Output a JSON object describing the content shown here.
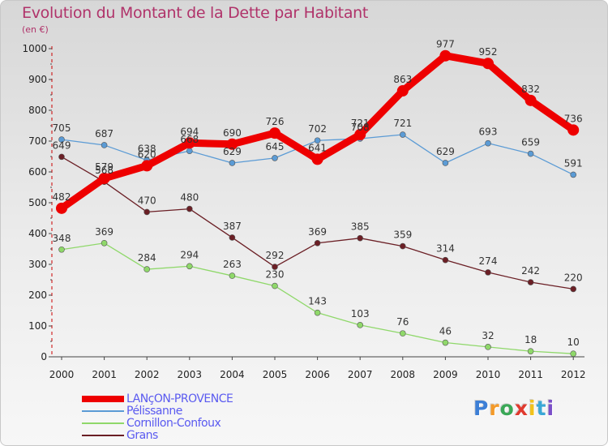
{
  "title": "Evolution du Montant de la Dette par Habitant",
  "subtitle": "(en €)",
  "chart_data": {
    "type": "line",
    "title": "Evolution du Montant de la Dette par Habitant",
    "ylabel": "(en €)",
    "xlabel": "",
    "ylim": [
      0,
      1000
    ],
    "yticks": [
      0,
      100,
      200,
      300,
      400,
      500,
      600,
      700,
      800,
      900,
      1000
    ],
    "categories": [
      "2000",
      "2001",
      "2002",
      "2003",
      "2004",
      "2005",
      "2006",
      "2007",
      "2008",
      "2009",
      "2010",
      "2011",
      "2012"
    ],
    "series": [
      {
        "name": "Pélissanne",
        "color": "#5b9bd5",
        "values": [
          705,
          687,
          638,
          668,
          629,
          645,
          702,
          708,
          721,
          629,
          693,
          659,
          591
        ]
      },
      {
        "name": "Cornillon-Confoux",
        "color": "#8fd86a",
        "values": [
          348,
          369,
          284,
          294,
          263,
          230,
          143,
          103,
          76,
          46,
          32,
          18,
          10
        ]
      },
      {
        "name": "Grans",
        "color": "#6b1f25",
        "values": [
          649,
          568,
          470,
          480,
          387,
          292,
          369,
          385,
          359,
          314,
          274,
          242,
          220
        ]
      },
      {
        "name": "LANçON-PROVENCE",
        "color": "#ee0000",
        "values": [
          482,
          579,
          620,
          694,
          690,
          726,
          641,
          721,
          863,
          977,
          952,
          832,
          736
        ]
      }
    ]
  },
  "legend": [
    {
      "label": "LANçON-PROVENCE",
      "color": "#ee0000"
    },
    {
      "label": "Pélissanne",
      "color": "#5b9bd5"
    },
    {
      "label": "Cornillon-Confoux",
      "color": "#8fd86a"
    },
    {
      "label": "Grans",
      "color": "#6b1f25"
    }
  ],
  "logo": {
    "text": "Proxiti",
    "letters": [
      {
        "ch": "P",
        "color": "#3d7fd6"
      },
      {
        "ch": "r",
        "color": "#f39a2a"
      },
      {
        "ch": "o",
        "color": "#3aa857"
      },
      {
        "ch": "x",
        "color": "#e03a2f"
      },
      {
        "ch": "i",
        "color": "#f2c21a"
      },
      {
        "ch": "t",
        "color": "#3aa8d6"
      },
      {
        "ch": "i",
        "color": "#7b4fc8"
      }
    ]
  }
}
